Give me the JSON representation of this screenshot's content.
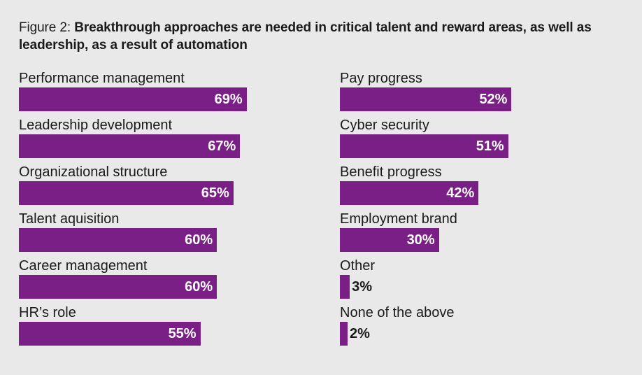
{
  "title": {
    "prefix": "Figure 2: ",
    "text": "Breakthrough approaches are needed in critical talent and reward areas, as well as leadership, as a result of automation"
  },
  "chart_data": {
    "type": "bar",
    "orientation": "horizontal",
    "title": "Figure 2: Breakthrough approaches are needed in critical talent and reward areas, as well as leadership, as a result of automation",
    "bar_color": "#7a1f86",
    "unit": "%",
    "xlim": [
      0,
      100
    ],
    "columns": [
      {
        "name": "left",
        "categories": [
          "Performance management",
          "Leadership development",
          "Organizational structure",
          "Talent aquisition",
          "Career management",
          "HR’s role"
        ],
        "values": [
          69,
          67,
          65,
          60,
          60,
          55
        ],
        "value_labels": [
          "69%",
          "67%",
          "65%",
          "60%",
          "60%",
          "55%"
        ]
      },
      {
        "name": "right",
        "categories": [
          "Pay progress",
          "Cyber security",
          "Benefit progress",
          "Employment brand",
          "Other",
          "None of the above"
        ],
        "values": [
          52,
          51,
          42,
          30,
          3,
          2
        ],
        "value_labels": [
          "52%",
          "51%",
          "42%",
          "30%",
          "3%",
          "2%"
        ]
      }
    ]
  }
}
